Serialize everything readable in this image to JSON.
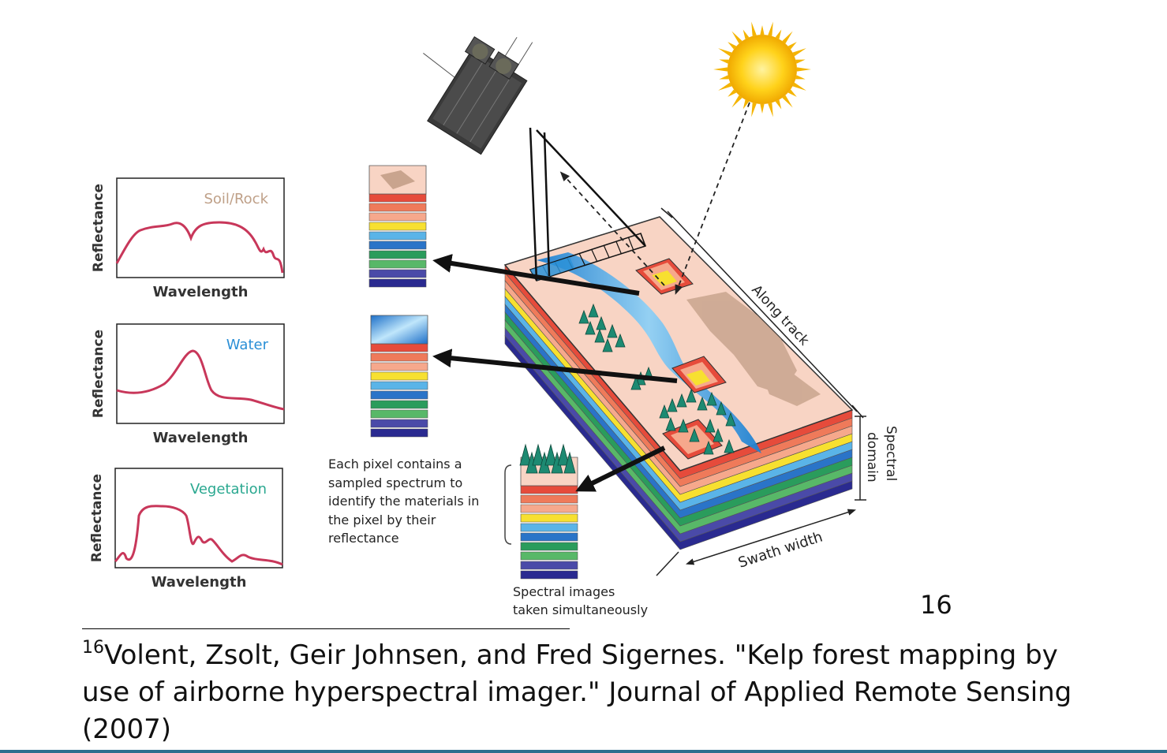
{
  "colors": {
    "curve": "#c8375a",
    "soil": "#bfa088",
    "water": "#2a8fd6",
    "vegetation": "#2aa890",
    "ground": "#f8d4c4",
    "river": "#2b92d8",
    "bands": [
      "#e64b3b",
      "#ef7a5a",
      "#f6a88c",
      "#f7e030",
      "#5ab4e8",
      "#2a74c8",
      "#2a9c5c",
      "#58b868",
      "#4a4aa8",
      "#2a2a90"
    ]
  },
  "graphs": [
    {
      "title": "Soil/Rock",
      "xlabel": "Wavelength",
      "ylabel": "Reflectance"
    },
    {
      "title": "Water",
      "xlabel": "Wavelength",
      "ylabel": "Reflectance"
    },
    {
      "title": "Vegetation",
      "xlabel": "Wavelength",
      "ylabel": "Reflectance"
    }
  ],
  "labels": {
    "pixel_note": [
      "Each pixel contains a",
      "sampled spectrum to",
      "identify the materials in",
      "the pixel by their",
      "reflectance"
    ],
    "spectral_images": [
      "Spectral images",
      "taken simultaneously"
    ],
    "along_track": "Along track",
    "spectral_domain": [
      "Spectral",
      "domain"
    ],
    "swath_width": "Swath width"
  },
  "page_number": "16",
  "footnote": {
    "marker": "16",
    "text": "Volent, Zsolt, Geir Johnsen, and Fred Sigernes. \"Kelp forest mapping by use of airborne hyperspectral imager.\" Journal of Applied Remote Sensing (2007)"
  }
}
